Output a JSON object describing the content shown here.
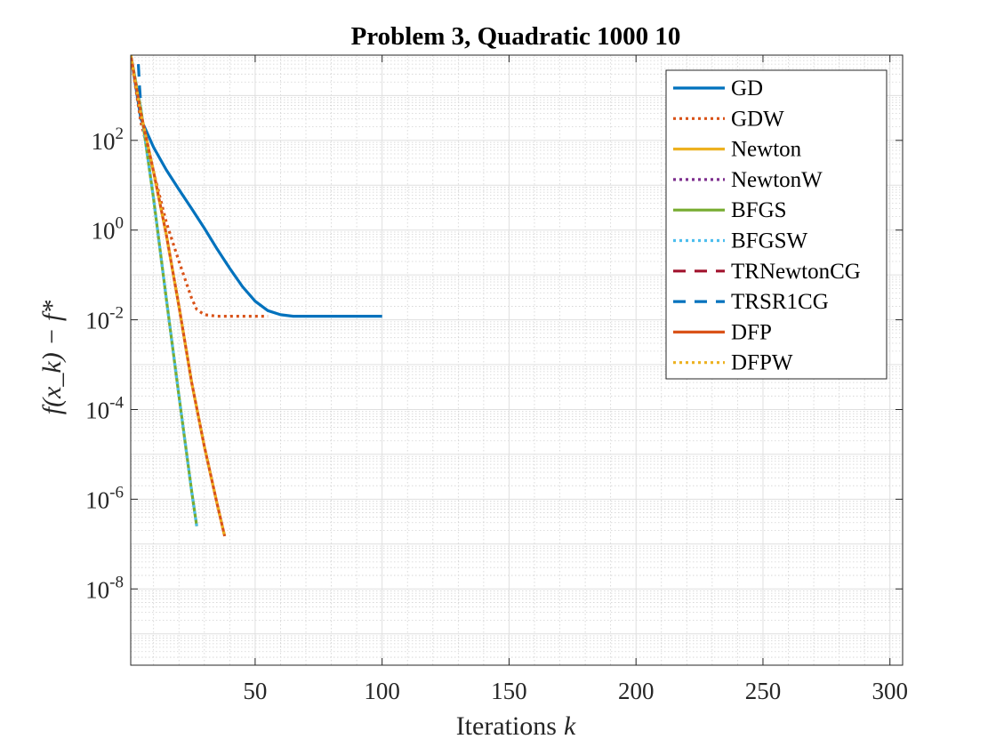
{
  "chart_data": {
    "type": "line",
    "title": "Problem 3, Quadratic 1000 10",
    "xlabel_text": "Iterations",
    "xlabel_var": "k",
    "ylabel_text": "f(x_k) − f*",
    "xlim": [
      1,
      305
    ],
    "ylim_exp": [
      -9.7,
      3.9
    ],
    "yscale": "log",
    "grid": true,
    "minor_grid": true,
    "legend_position": "top-right",
    "x_ticks": [
      50,
      100,
      150,
      200,
      250,
      300
    ],
    "x_tick_labels": [
      "50",
      "100",
      "150",
      "200",
      "250",
      "300"
    ],
    "y_ticks_exp": [
      2,
      0,
      -2,
      -4,
      -6,
      -8
    ],
    "y_tick_labels": [
      "10",
      "10",
      "10",
      "10",
      "10",
      "10"
    ],
    "y_tick_superscripts": [
      "2",
      "0",
      "-2",
      "-4",
      "-6",
      "-8"
    ],
    "series": [
      {
        "name": "GD",
        "color": "#0072BD",
        "dash": "solid",
        "x": [
          1,
          5,
          10,
          15,
          20,
          25,
          30,
          35,
          40,
          45,
          50,
          55,
          60,
          65,
          70,
          80,
          90,
          100
        ],
        "y": [
          8000,
          300,
          70,
          22,
          8,
          3,
          1.1,
          0.38,
          0.14,
          0.055,
          0.026,
          0.016,
          0.013,
          0.012,
          0.012,
          0.012,
          0.012,
          0.012
        ]
      },
      {
        "name": "GDW",
        "color": "#D95319",
        "dash": "dotted",
        "x": [
          1,
          5,
          10,
          15,
          20,
          25,
          27,
          30,
          35,
          40,
          45,
          50,
          55
        ],
        "y": [
          8000,
          250,
          20,
          1.5,
          0.2,
          0.03,
          0.017,
          0.013,
          0.012,
          0.012,
          0.012,
          0.012,
          0.012
        ]
      },
      {
        "name": "Newton",
        "color": "#EDB120",
        "dash": "solid",
        "x": [],
        "y": []
      },
      {
        "name": "NewtonW",
        "color": "#7E2F8E",
        "dash": "dotted",
        "x": [],
        "y": []
      },
      {
        "name": "BFGS",
        "color": "#77AC30",
        "dash": "solid",
        "x": [
          1,
          5,
          10,
          15,
          20,
          25,
          27
        ],
        "y": [
          8000,
          500,
          5,
          0.03,
          0.0002,
          1.5e-06,
          2.5e-07
        ]
      },
      {
        "name": "BFGSW",
        "color": "#4DBEEE",
        "dash": "dotted",
        "x": [
          1,
          5,
          10,
          15,
          20,
          25,
          27
        ],
        "y": [
          8000,
          500,
          5,
          0.03,
          0.0002,
          1.5e-06,
          2.5e-07
        ]
      },
      {
        "name": "TRNewtonCG",
        "color": "#A2142F",
        "dash": "dashed",
        "x": [],
        "y": []
      },
      {
        "name": "TRSR1CG",
        "color": "#0072BD",
        "dash": "dashed",
        "x": [
          4,
          4.5,
          5
        ],
        "y": [
          5000,
          1500,
          600
        ]
      },
      {
        "name": "DFP",
        "color": "#D95319",
        "dash": "solid",
        "x": [
          1,
          5,
          10,
          15,
          20,
          25,
          30,
          35,
          38
        ],
        "y": [
          8000,
          400,
          20,
          0.8,
          0.02,
          0.0004,
          1.5e-05,
          8e-07,
          1.5e-07
        ]
      },
      {
        "name": "DFPW",
        "color": "#EDB120",
        "dash": "dotted",
        "x": [
          1,
          5,
          10,
          15,
          20,
          25,
          30,
          35,
          38
        ],
        "y": [
          8000,
          400,
          20,
          0.8,
          0.02,
          0.0004,
          1.5e-05,
          8e-07,
          1.5e-07
        ]
      }
    ]
  }
}
